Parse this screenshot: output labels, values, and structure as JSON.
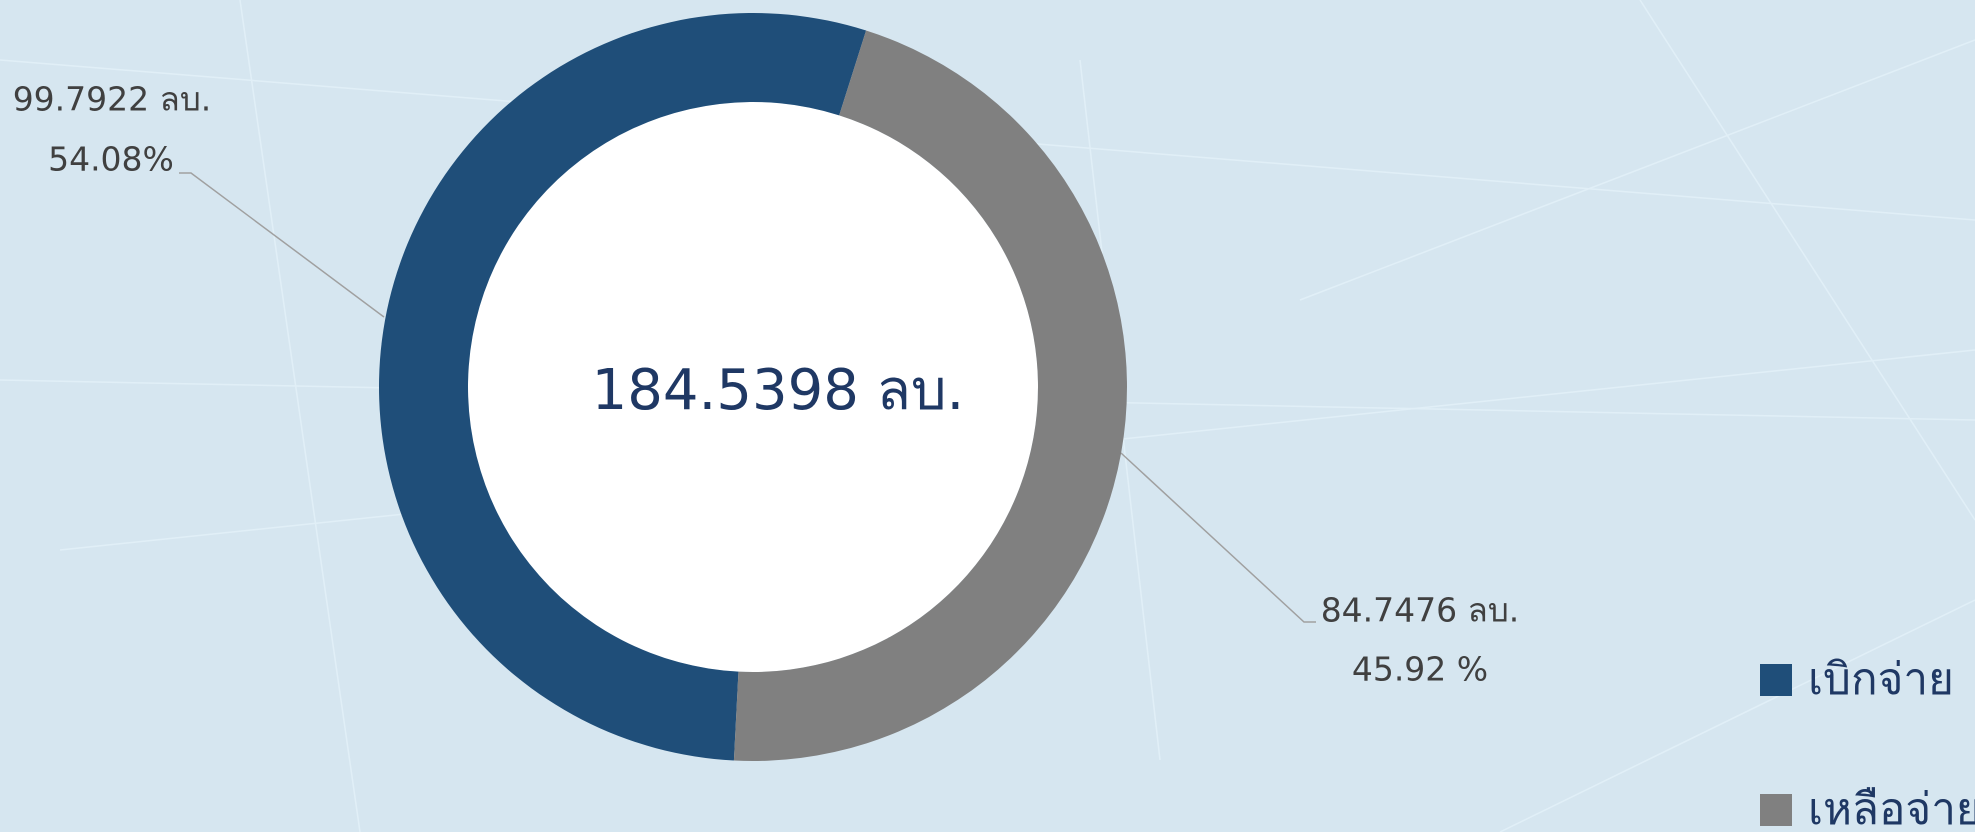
{
  "chart_data": {
    "type": "donut",
    "center_label": "184.5398 ลบ.",
    "categories": [
      "เบิกจ่าย",
      "เหลือจ่าย"
    ],
    "values": [
      99.7922,
      84.7476
    ],
    "value_labels": [
      "99.7922 ลบ.",
      "84.7476 ลบ."
    ],
    "percentages": [
      54.08,
      45.92
    ],
    "percentage_labels": [
      "54.08%",
      "45.92 %"
    ],
    "colors": [
      "#1f4e79",
      "#808080"
    ],
    "legend": "right"
  }
}
